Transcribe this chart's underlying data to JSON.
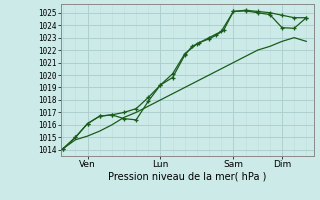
{
  "background_color": "#cceae7",
  "grid_major_color": "#aacccc",
  "grid_minor_color": "#c0dddd",
  "line_color": "#1a5c1a",
  "xlabel_text": "Pression niveau de la mer( hPa )",
  "yticks": [
    1014,
    1015,
    1016,
    1017,
    1018,
    1019,
    1020,
    1021,
    1022,
    1023,
    1024,
    1025
  ],
  "ylim": [
    1013.5,
    1025.7
  ],
  "xlim": [
    -0.1,
    10.3
  ],
  "xtick_positions": [
    1,
    4,
    7,
    9
  ],
  "xtick_labels": [
    "Ven",
    "Lun",
    "Sam",
    "Dim"
  ],
  "line1_x": [
    0,
    0.5,
    1,
    1.5,
    2,
    2.5,
    3,
    3.5,
    4,
    4.5,
    5,
    5.5,
    6,
    6.5,
    7,
    7.5,
    8,
    8.5,
    9,
    9.5,
    10
  ],
  "line1_y": [
    1014.1,
    1014.8,
    1015.1,
    1015.5,
    1016.0,
    1016.6,
    1017.0,
    1017.5,
    1018.0,
    1018.5,
    1019.0,
    1019.5,
    1020.0,
    1020.5,
    1021.0,
    1021.5,
    1022.0,
    1022.3,
    1022.7,
    1023.0,
    1022.7
  ],
  "line2_x": [
    0,
    0.5,
    1.0,
    1.5,
    2.0,
    2.5,
    3.0,
    3.5,
    4.0,
    4.5,
    5.0,
    5.3,
    5.6,
    6.0,
    6.3,
    6.6,
    7.0,
    7.5,
    8.0,
    8.5,
    9.0,
    9.5,
    10.0
  ],
  "line2_y": [
    1014.1,
    1015.0,
    1016.1,
    1016.7,
    1016.8,
    1017.0,
    1017.3,
    1018.2,
    1019.2,
    1019.8,
    1021.6,
    1022.3,
    1022.6,
    1022.9,
    1023.2,
    1023.6,
    1025.1,
    1025.2,
    1025.1,
    1025.0,
    1024.8,
    1024.6,
    1024.6
  ],
  "line3_x": [
    0,
    0.5,
    1.0,
    1.5,
    2.0,
    2.5,
    3.0,
    3.5,
    4.0,
    4.5,
    5.0,
    5.5,
    6.0,
    6.5,
    7.0,
    7.5,
    8.0,
    8.5,
    9.0,
    9.5,
    10.0
  ],
  "line3_y": [
    1014.1,
    1015.0,
    1016.1,
    1016.7,
    1016.8,
    1016.5,
    1016.4,
    1017.9,
    1019.2,
    1020.1,
    1021.7,
    1022.5,
    1023.0,
    1023.5,
    1025.1,
    1025.15,
    1025.0,
    1024.85,
    1023.8,
    1023.75,
    1024.6
  ]
}
